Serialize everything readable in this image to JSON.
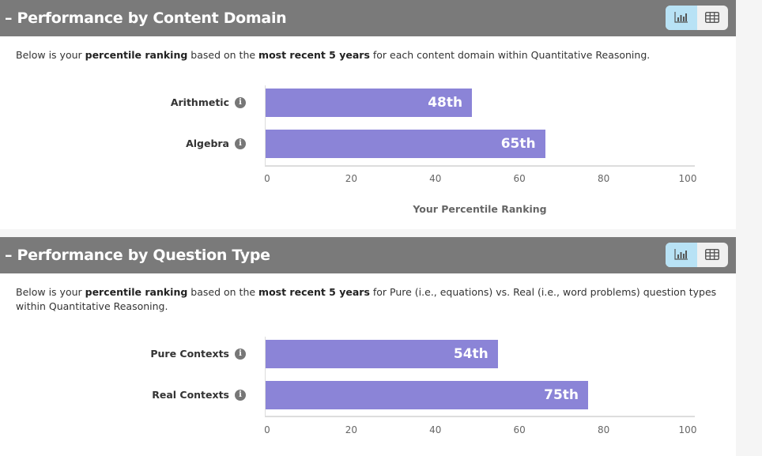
{
  "sections": [
    {
      "title": "Performance by Content Domain",
      "collapse_icon": "minus-icon",
      "description_parts": [
        "Below is your ",
        "percentile ranking",
        " based on the ",
        "most recent 5 years",
        " for each content domain within Quantitative Reasoning."
      ],
      "view_toggle": {
        "selected": "chart",
        "options": [
          "chart-icon",
          "table-icon"
        ]
      }
    },
    {
      "title": "Performance by Question Type",
      "collapse_icon": "minus-icon",
      "description_parts": [
        "Below is your ",
        "percentile ranking",
        " based on the ",
        "most recent 5 years",
        " for Pure (i.e., equations) vs. Real (i.e., word problems) question types within Quantitative Reasoning."
      ],
      "view_toggle": {
        "selected": "chart",
        "options": [
          "chart-icon",
          "table-icon"
        ]
      }
    }
  ],
  "chart_data": [
    {
      "type": "bar",
      "orientation": "horizontal",
      "categories": [
        "Arithmetic",
        "Algebra"
      ],
      "values": [
        48,
        65
      ],
      "data_labels": [
        "48th",
        "65th"
      ],
      "xlabel": "Your Percentile Ranking",
      "xlim": [
        0,
        100
      ],
      "xticks": [
        "0",
        "20",
        "40",
        "60",
        "80",
        "100"
      ],
      "bar_color": "#8b84d7",
      "grid": false
    },
    {
      "type": "bar",
      "orientation": "horizontal",
      "categories": [
        "Pure Contexts",
        "Real Contexts"
      ],
      "values": [
        54,
        75
      ],
      "data_labels": [
        "54th",
        "75th"
      ],
      "xlim": [
        0,
        100
      ],
      "xticks": [
        "0",
        "20",
        "40",
        "60",
        "80",
        "100"
      ],
      "bar_color": "#8b84d7",
      "grid": false
    }
  ],
  "colors": {
    "header_bg": "#7a7a7a",
    "toggle_active": "#b8e2f5",
    "bar": "#8b84d7"
  }
}
